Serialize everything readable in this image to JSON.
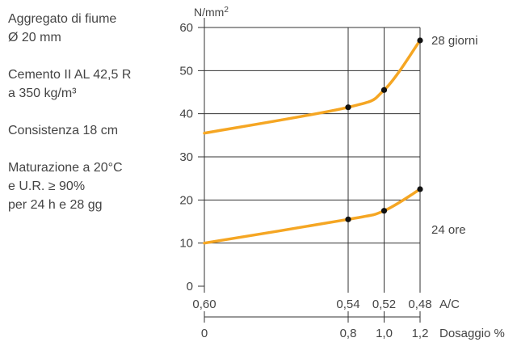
{
  "notes": [
    {
      "lines": [
        "Aggregato di fiume",
        "Ø 20 mm"
      ]
    },
    {
      "lines": [
        "Cemento II AL 42,5 R",
        "a 350 kg/m³"
      ]
    },
    {
      "lines": [
        "Consistenza 18 cm"
      ]
    },
    {
      "lines": [
        "Maturazione a 20°C",
        "e U.R. ≥ 90%",
        "per 24 h e 28 gg"
      ]
    }
  ],
  "chart_data": {
    "type": "line",
    "y_unit": "N/mm²",
    "y_unit_base": "N/mm",
    "y_unit_sup": "2",
    "ylim": [
      0,
      60
    ],
    "yticks": [
      0,
      10,
      20,
      30,
      40,
      50,
      60
    ],
    "ytick_labels": [
      "0",
      "10",
      "20",
      "30",
      "40",
      "50",
      "60"
    ],
    "x_axis_1": {
      "label": "A/C",
      "ticks": [
        0.6,
        0.54,
        0.52,
        0.48
      ],
      "tick_labels": [
        "0,60",
        "0,54",
        "0,52",
        "0,48"
      ]
    },
    "x_axis_2": {
      "label": "Dosaggio %",
      "ticks": [
        0,
        0.8,
        1.0,
        1.2
      ],
      "tick_labels": [
        "0",
        "0,8",
        "1,0",
        "1,2"
      ]
    },
    "grid": true,
    "series": [
      {
        "name": "28 giorni",
        "color": "#f5a623",
        "x": [
          0,
          0.8,
          1.0,
          1.2
        ],
        "y": [
          35.5,
          41.5,
          45.5,
          57.0
        ],
        "points": [
          {
            "x": 0.8,
            "y": 41.5
          },
          {
            "x": 1.0,
            "y": 45.5
          },
          {
            "x": 1.2,
            "y": 57.0
          }
        ]
      },
      {
        "name": "24 ore",
        "color": "#f5a623",
        "x": [
          0,
          0.8,
          1.0,
          1.2
        ],
        "y": [
          10.0,
          15.5,
          17.5,
          22.5
        ],
        "points": [
          {
            "x": 0.8,
            "y": 15.5
          },
          {
            "x": 1.0,
            "y": 17.5
          },
          {
            "x": 1.2,
            "y": 22.5
          }
        ]
      }
    ]
  }
}
